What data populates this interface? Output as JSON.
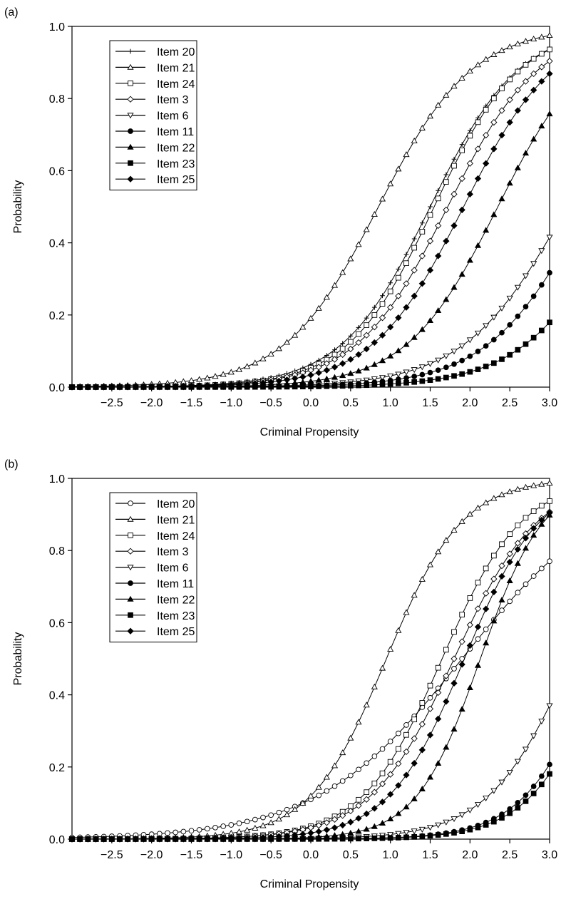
{
  "chart_data": [
    {
      "type": "line",
      "panel_label": "(a)",
      "xlabel": "Criminal Propensity",
      "ylabel": "Probability",
      "xlim": [
        -3.0,
        3.0
      ],
      "ylim": [
        0.0,
        1.0
      ],
      "x_ticks": [
        "-2.5",
        "-2.0",
        "-1.5",
        "-1.0",
        "-0.5",
        "0.0",
        "0.5",
        "1.0",
        "1.5",
        "2.0",
        "2.5",
        "3.0"
      ],
      "y_ticks": [
        "0.0",
        "0.2",
        "0.4",
        "0.6",
        "0.8",
        "1.0"
      ],
      "grid": false,
      "legend_position": "top-left",
      "x_sampling": {
        "start": -3.0,
        "end": 3.0,
        "step": 0.1
      },
      "series": [
        {
          "name": "Item 20",
          "marker": "plus",
          "model": {
            "a": 1.8,
            "b": 1.5
          }
        },
        {
          "name": "Item 21",
          "marker": "triangle-up-open",
          "model": {
            "a": 1.7,
            "b": 0.85
          }
        },
        {
          "name": "Item 24",
          "marker": "square-open",
          "model": {
            "a": 1.85,
            "b": 1.55
          }
        },
        {
          "name": "Item 3",
          "marker": "diamond-open",
          "model": {
            "a": 1.75,
            "b": 1.72
          }
        },
        {
          "name": "Item 6",
          "marker": "triangle-down-open",
          "model": {
            "a": 1.55,
            "b": 3.22
          }
        },
        {
          "name": "Item 11",
          "marker": "circle-filled",
          "model": {
            "a": 1.6,
            "b": 3.48
          }
        },
        {
          "name": "Item 22",
          "marker": "triangle-up-filled",
          "model": {
            "a": 1.75,
            "b": 2.35
          }
        },
        {
          "name": "Item 23",
          "marker": "square-filled",
          "model": {
            "a": 1.6,
            "b": 3.95
          }
        },
        {
          "name": "Item 25",
          "marker": "diamond-filled",
          "model": {
            "a": 1.75,
            "b": 1.92
          }
        }
      ]
    },
    {
      "type": "line",
      "panel_label": "(b)",
      "xlabel": "Criminal Propensity",
      "ylabel": "Probability",
      "xlim": [
        -3.0,
        3.0
      ],
      "ylim": [
        0.0,
        1.0
      ],
      "x_ticks": [
        "-2.5",
        "-2.0",
        "-1.5",
        "-1.0",
        "-0.5",
        "0.0",
        "0.5",
        "1.0",
        "1.5",
        "2.0",
        "2.5",
        "3.0"
      ],
      "y_ticks": [
        "0.0",
        "0.2",
        "0.4",
        "0.6",
        "0.8",
        "1.0"
      ],
      "grid": false,
      "legend_position": "top-left",
      "x_sampling": {
        "start": -3.0,
        "end": 3.0,
        "step": 0.1
      },
      "series": [
        {
          "name": "Item 20",
          "marker": "circle-open",
          "model": {
            "a": 1.1,
            "b": 1.9
          }
        },
        {
          "name": "Item 21",
          "marker": "triangle-up-open",
          "model": {
            "a": 2.1,
            "b": 0.95
          }
        },
        {
          "name": "Item 24",
          "marker": "square-open",
          "model": {
            "a": 2.0,
            "b": 1.65
          }
        },
        {
          "name": "Item 3",
          "marker": "diamond-open",
          "model": {
            "a": 1.9,
            "b": 1.8
          }
        },
        {
          "name": "Item 6",
          "marker": "triangle-down-open",
          "model": {
            "a": 1.9,
            "b": 3.28
          }
        },
        {
          "name": "Item 11",
          "marker": "circle-filled",
          "model": {
            "a": 2.1,
            "b": 3.64
          }
        },
        {
          "name": "Item 22",
          "marker": "triangle-up-filled",
          "model": {
            "a": 2.5,
            "b": 2.13
          }
        },
        {
          "name": "Item 23",
          "marker": "square-filled",
          "model": {
            "a": 2.1,
            "b": 3.72
          }
        },
        {
          "name": "Item 25",
          "marker": "diamond-filled",
          "model": {
            "a": 2.1,
            "b": 1.93
          }
        }
      ]
    }
  ]
}
